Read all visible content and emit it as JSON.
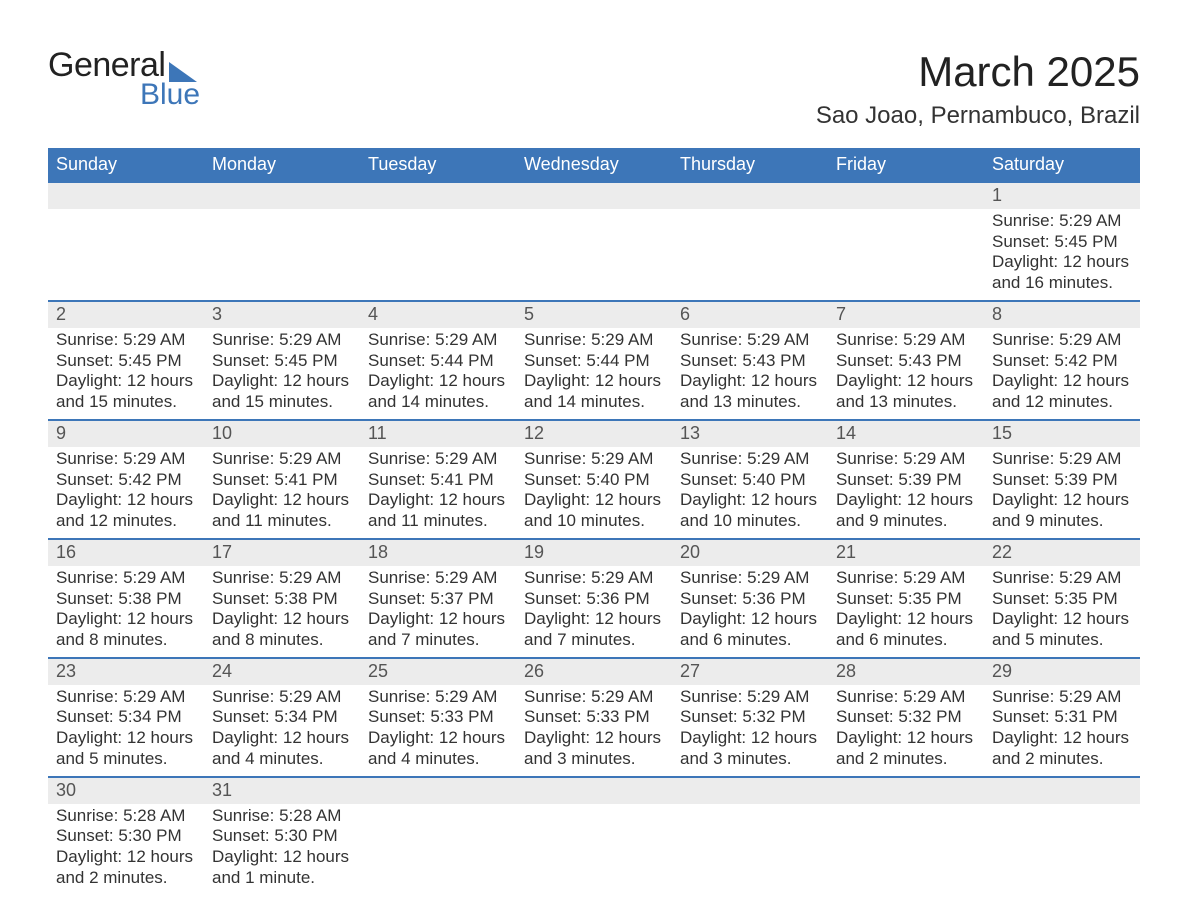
{
  "logo": {
    "word1": "General",
    "word2": "Blue",
    "triangle_color": "#3d76b8"
  },
  "title": "March 2025",
  "subtitle": "Sao Joao, Pernambuco, Brazil",
  "colors": {
    "header_bg": "#3d76b8",
    "header_text": "#ffffff",
    "daynum_bg": "#ececec",
    "row_border": "#3d76b8",
    "body_text": "#333333"
  },
  "font": {
    "body_size": 17,
    "header_size": 18,
    "title_size": 42,
    "subtitle_size": 24
  },
  "day_headers": [
    "Sunday",
    "Monday",
    "Tuesday",
    "Wednesday",
    "Thursday",
    "Friday",
    "Saturday"
  ],
  "weeks": [
    [
      null,
      null,
      null,
      null,
      null,
      null,
      {
        "n": 1,
        "sunrise": "5:29 AM",
        "sunset": "5:45 PM",
        "daylight": "12 hours and 16 minutes."
      }
    ],
    [
      {
        "n": 2,
        "sunrise": "5:29 AM",
        "sunset": "5:45 PM",
        "daylight": "12 hours and 15 minutes."
      },
      {
        "n": 3,
        "sunrise": "5:29 AM",
        "sunset": "5:45 PM",
        "daylight": "12 hours and 15 minutes."
      },
      {
        "n": 4,
        "sunrise": "5:29 AM",
        "sunset": "5:44 PM",
        "daylight": "12 hours and 14 minutes."
      },
      {
        "n": 5,
        "sunrise": "5:29 AM",
        "sunset": "5:44 PM",
        "daylight": "12 hours and 14 minutes."
      },
      {
        "n": 6,
        "sunrise": "5:29 AM",
        "sunset": "5:43 PM",
        "daylight": "12 hours and 13 minutes."
      },
      {
        "n": 7,
        "sunrise": "5:29 AM",
        "sunset": "5:43 PM",
        "daylight": "12 hours and 13 minutes."
      },
      {
        "n": 8,
        "sunrise": "5:29 AM",
        "sunset": "5:42 PM",
        "daylight": "12 hours and 12 minutes."
      }
    ],
    [
      {
        "n": 9,
        "sunrise": "5:29 AM",
        "sunset": "5:42 PM",
        "daylight": "12 hours and 12 minutes."
      },
      {
        "n": 10,
        "sunrise": "5:29 AM",
        "sunset": "5:41 PM",
        "daylight": "12 hours and 11 minutes."
      },
      {
        "n": 11,
        "sunrise": "5:29 AM",
        "sunset": "5:41 PM",
        "daylight": "12 hours and 11 minutes."
      },
      {
        "n": 12,
        "sunrise": "5:29 AM",
        "sunset": "5:40 PM",
        "daylight": "12 hours and 10 minutes."
      },
      {
        "n": 13,
        "sunrise": "5:29 AM",
        "sunset": "5:40 PM",
        "daylight": "12 hours and 10 minutes."
      },
      {
        "n": 14,
        "sunrise": "5:29 AM",
        "sunset": "5:39 PM",
        "daylight": "12 hours and 9 minutes."
      },
      {
        "n": 15,
        "sunrise": "5:29 AM",
        "sunset": "5:39 PM",
        "daylight": "12 hours and 9 minutes."
      }
    ],
    [
      {
        "n": 16,
        "sunrise": "5:29 AM",
        "sunset": "5:38 PM",
        "daylight": "12 hours and 8 minutes."
      },
      {
        "n": 17,
        "sunrise": "5:29 AM",
        "sunset": "5:38 PM",
        "daylight": "12 hours and 8 minutes."
      },
      {
        "n": 18,
        "sunrise": "5:29 AM",
        "sunset": "5:37 PM",
        "daylight": "12 hours and 7 minutes."
      },
      {
        "n": 19,
        "sunrise": "5:29 AM",
        "sunset": "5:36 PM",
        "daylight": "12 hours and 7 minutes."
      },
      {
        "n": 20,
        "sunrise": "5:29 AM",
        "sunset": "5:36 PM",
        "daylight": "12 hours and 6 minutes."
      },
      {
        "n": 21,
        "sunrise": "5:29 AM",
        "sunset": "5:35 PM",
        "daylight": "12 hours and 6 minutes."
      },
      {
        "n": 22,
        "sunrise": "5:29 AM",
        "sunset": "5:35 PM",
        "daylight": "12 hours and 5 minutes."
      }
    ],
    [
      {
        "n": 23,
        "sunrise": "5:29 AM",
        "sunset": "5:34 PM",
        "daylight": "12 hours and 5 minutes."
      },
      {
        "n": 24,
        "sunrise": "5:29 AM",
        "sunset": "5:34 PM",
        "daylight": "12 hours and 4 minutes."
      },
      {
        "n": 25,
        "sunrise": "5:29 AM",
        "sunset": "5:33 PM",
        "daylight": "12 hours and 4 minutes."
      },
      {
        "n": 26,
        "sunrise": "5:29 AM",
        "sunset": "5:33 PM",
        "daylight": "12 hours and 3 minutes."
      },
      {
        "n": 27,
        "sunrise": "5:29 AM",
        "sunset": "5:32 PM",
        "daylight": "12 hours and 3 minutes."
      },
      {
        "n": 28,
        "sunrise": "5:29 AM",
        "sunset": "5:32 PM",
        "daylight": "12 hours and 2 minutes."
      },
      {
        "n": 29,
        "sunrise": "5:29 AM",
        "sunset": "5:31 PM",
        "daylight": "12 hours and 2 minutes."
      }
    ],
    [
      {
        "n": 30,
        "sunrise": "5:28 AM",
        "sunset": "5:30 PM",
        "daylight": "12 hours and 2 minutes."
      },
      {
        "n": 31,
        "sunrise": "5:28 AM",
        "sunset": "5:30 PM",
        "daylight": "12 hours and 1 minute."
      },
      null,
      null,
      null,
      null,
      null
    ]
  ],
  "labels": {
    "sunrise": "Sunrise:",
    "sunset": "Sunset:",
    "daylight": "Daylight:"
  }
}
